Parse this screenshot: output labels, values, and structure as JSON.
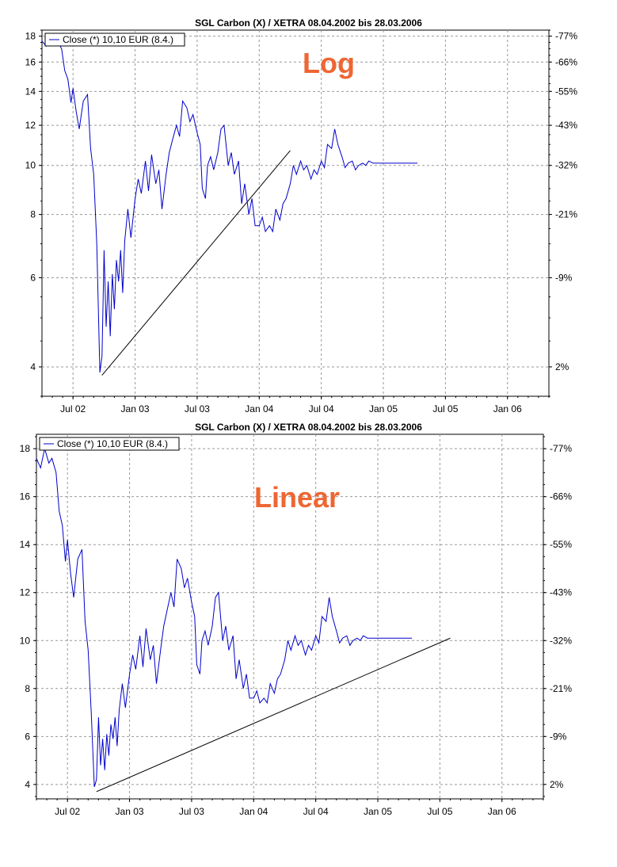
{
  "chart_data": [
    {
      "type": "line",
      "title": "SGL Carbon (X) / XETRA 08.04.2002 bis 28.03.2006",
      "annotation": "Log",
      "scale": "log",
      "legend": "Close (*) 10,10 EUR (8.4.)",
      "legend_position": "top-left",
      "grid": true,
      "series_color": "#0000cc",
      "trendline_color": "#000000",
      "x_ticks": [
        "Jul 02",
        "Jan 03",
        "Jul 03",
        "Jan 04",
        "Jul 04",
        "Jan 05",
        "Jul 05",
        "Jan 06"
      ],
      "y_left_ticks": [
        4,
        6,
        8,
        10,
        12,
        14,
        16,
        18
      ],
      "y_right_ticks": [
        "2%",
        "-9%",
        "-21%",
        "-32%",
        "-43%",
        "-55%",
        "-66%",
        "-77%"
      ],
      "ylim": [
        3.5,
        18.5
      ],
      "x_range_months": [
        0,
        49
      ],
      "series": [
        {
          "name": "Close (*)",
          "x": [
            0.0,
            0.4,
            0.8,
            1.2,
            1.5,
            1.9,
            2.2,
            2.5,
            2.8,
            3.0,
            3.3,
            3.6,
            4.0,
            4.4,
            4.7,
            5.0,
            5.3,
            5.6,
            5.8,
            6.0,
            6.2,
            6.4,
            6.6,
            6.8,
            7.0,
            7.2,
            7.4,
            7.6,
            7.8,
            8.0,
            8.3,
            8.6,
            9.0,
            9.3,
            9.6,
            10.0,
            10.3,
            10.6,
            11.0,
            11.3,
            11.6,
            12.0,
            12.3,
            12.6,
            13.0,
            13.3,
            13.6,
            14.0,
            14.3,
            14.6,
            15.0,
            15.3,
            15.5,
            15.8,
            16.0,
            16.3,
            16.6,
            17.0,
            17.3,
            17.6,
            18.0,
            18.3,
            18.6,
            19.0,
            19.3,
            19.6,
            20.0,
            20.3,
            20.6,
            21.0,
            21.3,
            21.6,
            22.0,
            22.3,
            22.6,
            23.0,
            23.3,
            23.6,
            24.0,
            24.3,
            24.6,
            25.0,
            25.3,
            25.6,
            26.0,
            26.3,
            26.6,
            27.0,
            27.3,
            27.6,
            28.0,
            28.3,
            28.6,
            29.0,
            29.3,
            29.6,
            30.0,
            30.3,
            30.6,
            31.0,
            31.3,
            31.6,
            32.0,
            32.3,
            32.6,
            33.0,
            33.3,
            33.6,
            34.0,
            34.3,
            34.6,
            35.0,
            35.3,
            35.6,
            36.0,
            36.3
          ],
          "values": [
            17.6,
            17.2,
            18.0,
            17.4,
            17.6,
            17.0,
            15.4,
            14.8,
            13.3,
            14.2,
            12.8,
            11.8,
            13.4,
            13.8,
            10.8,
            9.6,
            7.0,
            3.9,
            4.2,
            6.8,
            4.8,
            5.9,
            4.6,
            6.1,
            5.2,
            6.5,
            5.9,
            6.8,
            5.6,
            7.1,
            8.2,
            7.2,
            8.6,
            9.4,
            8.8,
            10.2,
            8.9,
            10.5,
            9.2,
            9.8,
            8.2,
            9.6,
            10.6,
            11.2,
            12.0,
            11.4,
            13.4,
            13.0,
            12.2,
            12.6,
            11.6,
            11.0,
            9.0,
            8.6,
            10.0,
            10.4,
            9.8,
            10.6,
            11.8,
            12.0,
            10.0,
            10.6,
            9.6,
            10.2,
            8.4,
            9.2,
            8.0,
            8.6,
            7.6,
            7.6,
            7.9,
            7.4,
            7.6,
            7.4,
            8.2,
            7.8,
            8.4,
            8.6,
            9.2,
            10.0,
            9.6,
            10.2,
            9.8,
            10.0,
            9.4,
            9.8,
            9.6,
            10.2,
            9.9,
            11.0,
            10.8,
            11.8,
            11.0,
            10.4,
            9.9,
            10.1,
            10.2,
            9.8,
            10.0,
            10.1,
            10.0,
            10.2,
            10.1,
            10.1,
            10.1,
            10.1,
            10.1,
            10.1,
            10.1,
            10.1,
            10.1,
            10.1,
            10.1,
            10.1,
            10.1,
            10.1
          ]
        }
      ],
      "trendline": {
        "x": [
          5.8,
          24.0
        ],
        "values": [
          3.85,
          10.7
        ]
      }
    },
    {
      "type": "line",
      "title": "SGL Carbon (X) / XETRA 08.04.2002 bis 28.03.2006",
      "annotation": "Linear",
      "scale": "linear",
      "legend": "Close (*) 10,10 EUR (8.4.)",
      "legend_position": "top-left",
      "grid": true,
      "series_color": "#0000cc",
      "trendline_color": "#000000",
      "x_ticks": [
        "Jul 02",
        "Jan 03",
        "Jul 03",
        "Jan 04",
        "Jul 04",
        "Jan 05",
        "Jul 05",
        "Jan 06"
      ],
      "y_left_ticks": [
        4,
        6,
        8,
        10,
        12,
        14,
        16,
        18
      ],
      "y_right_ticks": [
        "2%",
        "-9%",
        "-21%",
        "-32%",
        "-43%",
        "-55%",
        "-66%",
        "-77%"
      ],
      "ylim": [
        3.4,
        18.6
      ],
      "x_range_months": [
        0,
        49
      ],
      "series": [
        {
          "name": "Close (*)",
          "x": [
            0.0,
            0.4,
            0.8,
            1.2,
            1.5,
            1.9,
            2.2,
            2.5,
            2.8,
            3.0,
            3.3,
            3.6,
            4.0,
            4.4,
            4.7,
            5.0,
            5.3,
            5.6,
            5.8,
            6.0,
            6.2,
            6.4,
            6.6,
            6.8,
            7.0,
            7.2,
            7.4,
            7.6,
            7.8,
            8.0,
            8.3,
            8.6,
            9.0,
            9.3,
            9.6,
            10.0,
            10.3,
            10.6,
            11.0,
            11.3,
            11.6,
            12.0,
            12.3,
            12.6,
            13.0,
            13.3,
            13.6,
            14.0,
            14.3,
            14.6,
            15.0,
            15.3,
            15.5,
            15.8,
            16.0,
            16.3,
            16.6,
            17.0,
            17.3,
            17.6,
            18.0,
            18.3,
            18.6,
            19.0,
            19.3,
            19.6,
            20.0,
            20.3,
            20.6,
            21.0,
            21.3,
            21.6,
            22.0,
            22.3,
            22.6,
            23.0,
            23.3,
            23.6,
            24.0,
            24.3,
            24.6,
            25.0,
            25.3,
            25.6,
            26.0,
            26.3,
            26.6,
            27.0,
            27.3,
            27.6,
            28.0,
            28.3,
            28.6,
            29.0,
            29.3,
            29.6,
            30.0,
            30.3,
            30.6,
            31.0,
            31.3,
            31.6,
            32.0,
            32.3,
            32.6,
            33.0,
            33.3,
            33.6,
            34.0,
            34.3,
            34.6,
            35.0,
            35.3,
            35.6,
            36.0,
            36.3
          ],
          "values": [
            17.6,
            17.2,
            18.0,
            17.4,
            17.6,
            17.0,
            15.4,
            14.8,
            13.3,
            14.2,
            12.8,
            11.8,
            13.4,
            13.8,
            10.8,
            9.6,
            7.0,
            3.9,
            4.2,
            6.8,
            4.8,
            5.9,
            4.6,
            6.1,
            5.2,
            6.5,
            5.9,
            6.8,
            5.6,
            7.1,
            8.2,
            7.2,
            8.6,
            9.4,
            8.8,
            10.2,
            8.9,
            10.5,
            9.2,
            9.8,
            8.2,
            9.6,
            10.6,
            11.2,
            12.0,
            11.4,
            13.4,
            13.0,
            12.2,
            12.6,
            11.6,
            11.0,
            9.0,
            8.6,
            10.0,
            10.4,
            9.8,
            10.6,
            11.8,
            12.0,
            10.0,
            10.6,
            9.6,
            10.2,
            8.4,
            9.2,
            8.0,
            8.6,
            7.6,
            7.6,
            7.9,
            7.4,
            7.6,
            7.4,
            8.2,
            7.8,
            8.4,
            8.6,
            9.2,
            10.0,
            9.6,
            10.2,
            9.8,
            10.0,
            9.4,
            9.8,
            9.6,
            10.2,
            9.9,
            11.0,
            10.8,
            11.8,
            11.0,
            10.4,
            9.9,
            10.1,
            10.2,
            9.8,
            10.0,
            10.1,
            10.0,
            10.2,
            10.1,
            10.1,
            10.1,
            10.1,
            10.1,
            10.1,
            10.1,
            10.1,
            10.1,
            10.1,
            10.1,
            10.1,
            10.1,
            10.1
          ]
        }
      ],
      "trendline": {
        "x": [
          5.8,
          40.0
        ],
        "values": [
          3.7,
          10.1
        ]
      }
    }
  ]
}
